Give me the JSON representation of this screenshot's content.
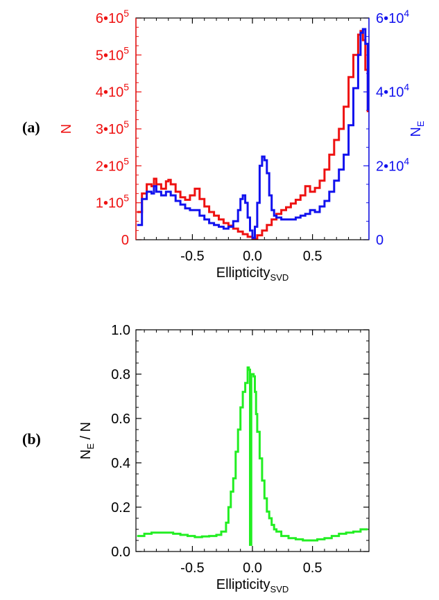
{
  "figure": {
    "panel_labels": [
      "(a)",
      "(b)"
    ]
  },
  "chart_data": [
    {
      "type": "line",
      "panel": "(a)",
      "xlabel": "Ellipticity",
      "xlabel_sub": "SVD",
      "xlim": [
        -0.97,
        0.97
      ],
      "x_ticks": [
        -0.5,
        0.0,
        0.5
      ],
      "x_tick_labels": [
        "-0.5",
        "0.0",
        "0.5"
      ],
      "left_axis": {
        "label": "N",
        "color": "#ee1111",
        "lim": [
          0,
          600000
        ],
        "ticks": [
          0,
          100000,
          200000,
          300000,
          400000,
          500000,
          600000
        ],
        "tick_labels": [
          {
            "value": 0,
            "mantissa": "0",
            "exp": ""
          },
          {
            "value": 100000,
            "mantissa": "1•10",
            "exp": "5"
          },
          {
            "value": 200000,
            "mantissa": "2•10",
            "exp": "5"
          },
          {
            "value": 300000,
            "mantissa": "3•10",
            "exp": "5"
          },
          {
            "value": 400000,
            "mantissa": "4•10",
            "exp": "5"
          },
          {
            "value": 500000,
            "mantissa": "5•10",
            "exp": "5"
          },
          {
            "value": 600000,
            "mantissa": "6•10",
            "exp": "5"
          }
        ]
      },
      "right_axis": {
        "label": "N",
        "label_sub": "E",
        "color": "#1111ee",
        "lim": [
          0,
          60000
        ],
        "ticks": [
          0,
          20000,
          40000,
          60000
        ],
        "tick_labels": [
          {
            "value": 0,
            "mantissa": "0",
            "exp": ""
          },
          {
            "value": 20000,
            "mantissa": "2•10",
            "exp": "4"
          },
          {
            "value": 40000,
            "mantissa": "4•10",
            "exp": "4"
          },
          {
            "value": 60000,
            "mantissa": "6•10",
            "exp": "4"
          }
        ]
      },
      "series": [
        {
          "axis": "left",
          "color": "#ee1111",
          "x": [
            -0.96,
            -0.92,
            -0.88,
            -0.84,
            -0.82,
            -0.8,
            -0.76,
            -0.72,
            -0.7,
            -0.68,
            -0.64,
            -0.6,
            -0.56,
            -0.52,
            -0.48,
            -0.44,
            -0.4,
            -0.36,
            -0.32,
            -0.28,
            -0.24,
            -0.2,
            -0.16,
            -0.12,
            -0.08,
            -0.04,
            0.0,
            0.04,
            0.08,
            0.12,
            0.16,
            0.2,
            0.24,
            0.28,
            0.32,
            0.36,
            0.4,
            0.44,
            0.48,
            0.52,
            0.56,
            0.6,
            0.64,
            0.68,
            0.72,
            0.76,
            0.8,
            0.84,
            0.88,
            0.9,
            0.92,
            0.94,
            0.96
          ],
          "y": [
            75000,
            125000,
            150000,
            145000,
            165000,
            150000,
            138000,
            158000,
            162000,
            150000,
            130000,
            115000,
            108000,
            120000,
            138000,
            110000,
            90000,
            75000,
            65000,
            55000,
            45000,
            38000,
            30000,
            22000,
            15000,
            8000,
            2000,
            12000,
            25000,
            40000,
            55000,
            70000,
            80000,
            88000,
            98000,
            108000,
            120000,
            145000,
            130000,
            140000,
            160000,
            190000,
            230000,
            270000,
            300000,
            360000,
            440000,
            500000,
            555000,
            565000,
            540000,
            460000,
            345000
          ]
        },
        {
          "axis": "right",
          "color": "#1111ee",
          "x": [
            -0.96,
            -0.92,
            -0.88,
            -0.84,
            -0.82,
            -0.8,
            -0.76,
            -0.72,
            -0.68,
            -0.64,
            -0.6,
            -0.56,
            -0.52,
            -0.48,
            -0.44,
            -0.4,
            -0.36,
            -0.32,
            -0.28,
            -0.24,
            -0.2,
            -0.16,
            -0.12,
            -0.1,
            -0.08,
            -0.06,
            -0.04,
            -0.02,
            0.0,
            0.02,
            0.04,
            0.06,
            0.08,
            0.1,
            0.12,
            0.14,
            0.16,
            0.18,
            0.2,
            0.24,
            0.28,
            0.32,
            0.36,
            0.4,
            0.44,
            0.48,
            0.52,
            0.56,
            0.6,
            0.64,
            0.68,
            0.72,
            0.76,
            0.8,
            0.84,
            0.88,
            0.9,
            0.92,
            0.94,
            0.96
          ],
          "y": [
            4000,
            11000,
            13000,
            12500,
            14500,
            13000,
            12000,
            13000,
            12000,
            10500,
            9500,
            8500,
            8000,
            8000,
            6500,
            5500,
            4500,
            4000,
            3500,
            3000,
            3500,
            5000,
            8000,
            11000,
            12000,
            10000,
            6000,
            2500,
            500,
            3500,
            10000,
            20000,
            22500,
            21500,
            18000,
            12000,
            8000,
            6500,
            6000,
            5500,
            5500,
            5500,
            6000,
            6500,
            7000,
            8000,
            7500,
            9000,
            10500,
            13000,
            16000,
            19000,
            23000,
            31000,
            41000,
            50000,
            56000,
            57000,
            53000,
            35000
          ]
        }
      ]
    },
    {
      "type": "line",
      "panel": "(b)",
      "xlabel": "Ellipticity",
      "xlabel_sub": "SVD",
      "xlim": [
        -0.97,
        0.97
      ],
      "x_ticks": [
        -0.5,
        0.0,
        0.5
      ],
      "x_tick_labels": [
        "-0.5",
        "0.0",
        "0.5"
      ],
      "ylabel": "N",
      "ylabel_sub": "E",
      "ylabel_suffix": " / N",
      "ylim": [
        0.0,
        1.0
      ],
      "y_ticks": [
        0.0,
        0.2,
        0.4,
        0.6,
        0.8,
        1.0
      ],
      "y_tick_labels": [
        "0.0",
        "0.2",
        "0.4",
        "0.6",
        "0.8",
        "1.0"
      ],
      "series": [
        {
          "color": "#22ee22",
          "x": [
            -0.96,
            -0.9,
            -0.84,
            -0.78,
            -0.72,
            -0.66,
            -0.6,
            -0.54,
            -0.48,
            -0.42,
            -0.36,
            -0.3,
            -0.26,
            -0.22,
            -0.2,
            -0.18,
            -0.16,
            -0.14,
            -0.12,
            -0.1,
            -0.08,
            -0.06,
            -0.04,
            -0.03,
            -0.02,
            -0.01,
            0.0,
            0.01,
            0.02,
            0.03,
            0.04,
            0.06,
            0.08,
            0.1,
            0.12,
            0.14,
            0.16,
            0.18,
            0.2,
            0.24,
            0.3,
            0.36,
            0.42,
            0.48,
            0.54,
            0.6,
            0.66,
            0.72,
            0.78,
            0.84,
            0.9,
            0.96
          ],
          "y": [
            0.07,
            0.08,
            0.085,
            0.085,
            0.085,
            0.08,
            0.075,
            0.07,
            0.065,
            0.068,
            0.07,
            0.075,
            0.09,
            0.13,
            0.2,
            0.27,
            0.33,
            0.45,
            0.55,
            0.65,
            0.72,
            0.76,
            0.83,
            0.82,
            0.03,
            0.8,
            0.8,
            0.79,
            0.72,
            0.62,
            0.54,
            0.42,
            0.32,
            0.24,
            0.18,
            0.15,
            0.12,
            0.1,
            0.09,
            0.07,
            0.06,
            0.055,
            0.05,
            0.05,
            0.055,
            0.06,
            0.07,
            0.08,
            0.085,
            0.09,
            0.1,
            0.1
          ]
        }
      ]
    }
  ]
}
